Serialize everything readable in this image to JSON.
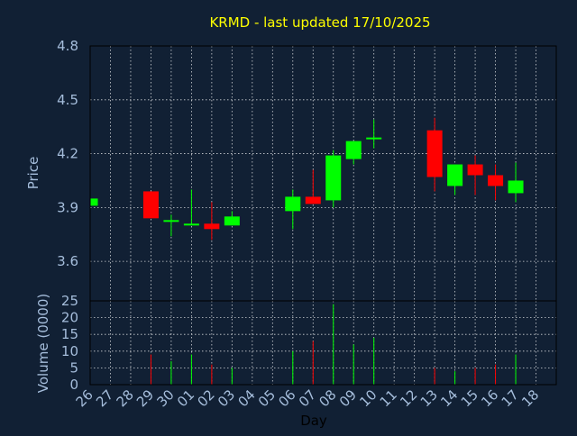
{
  "chart_data": {
    "type": "candlestick",
    "title": "KRMD - last updated 17/10/2025",
    "colors": {
      "background": "#112034",
      "axis_text": "#a5bddb",
      "title": "#ffff00",
      "grid": "#ffffff",
      "up": "#00ff00",
      "down": "#ff0000"
    },
    "grid": true,
    "price_panel": {
      "ylabel": "Price",
      "ylim": [
        3.38,
        4.8
      ],
      "yticks": [
        "3.6",
        "3.9",
        "4.2",
        "4.5",
        "4.8"
      ]
    },
    "volume_panel": {
      "ylabel": "Volume (0000)",
      "ylim": [
        0,
        25
      ],
      "yticks": [
        "0",
        "5",
        "10",
        "15",
        "20",
        "25"
      ]
    },
    "xlabel": "Day",
    "x_ticks": [
      "26",
      "27",
      "28",
      "29",
      "30",
      "01",
      "02",
      "03",
      "04",
      "05",
      "06",
      "07",
      "08",
      "09",
      "10",
      "11",
      "12",
      "13",
      "14",
      "15",
      "16",
      "17",
      "18"
    ],
    "candles": [
      {
        "day": "26",
        "open": 3.91,
        "close": 3.95,
        "high": 3.95,
        "low": 3.91,
        "volume": 0
      },
      {
        "day": "29",
        "open": 3.99,
        "close": 3.84,
        "high": 3.99,
        "low": 3.84,
        "volume": 9
      },
      {
        "day": "30",
        "open": 3.82,
        "close": 3.83,
        "high": 3.86,
        "low": 3.74,
        "volume": 7
      },
      {
        "day": "01",
        "open": 3.8,
        "close": 3.81,
        "high": 4.0,
        "low": 3.8,
        "volume": 9
      },
      {
        "day": "02",
        "open": 3.81,
        "close": 3.78,
        "high": 3.93,
        "low": 3.72,
        "volume": 6
      },
      {
        "day": "03",
        "open": 3.8,
        "close": 3.85,
        "high": 3.88,
        "low": 3.8,
        "volume": 5
      },
      {
        "day": "06",
        "open": 3.88,
        "close": 3.96,
        "high": 4.0,
        "low": 3.78,
        "volume": 10
      },
      {
        "day": "07",
        "open": 3.96,
        "close": 3.92,
        "high": 4.11,
        "low": 3.92,
        "volume": 13
      },
      {
        "day": "08",
        "open": 3.94,
        "close": 4.19,
        "high": 4.22,
        "low": 3.9,
        "volume": 24
      },
      {
        "day": "09",
        "open": 4.17,
        "close": 4.27,
        "high": 4.27,
        "low": 4.14,
        "volume": 12
      },
      {
        "day": "10",
        "open": 4.28,
        "close": 4.29,
        "high": 4.39,
        "low": 4.23,
        "volume": 14
      },
      {
        "day": "13",
        "open": 4.33,
        "close": 4.07,
        "high": 4.4,
        "low": 3.99,
        "volume": 5
      },
      {
        "day": "14",
        "open": 4.02,
        "close": 4.14,
        "high": 4.14,
        "low": 3.97,
        "volume": 4
      },
      {
        "day": "15",
        "open": 4.14,
        "close": 4.08,
        "high": 4.19,
        "low": 3.97,
        "volume": 5
      },
      {
        "day": "16",
        "open": 4.08,
        "close": 4.02,
        "high": 4.14,
        "low": 3.94,
        "volume": 6
      },
      {
        "day": "17",
        "open": 3.98,
        "close": 4.05,
        "high": 4.15,
        "low": 3.93,
        "volume": 9
      }
    ]
  }
}
